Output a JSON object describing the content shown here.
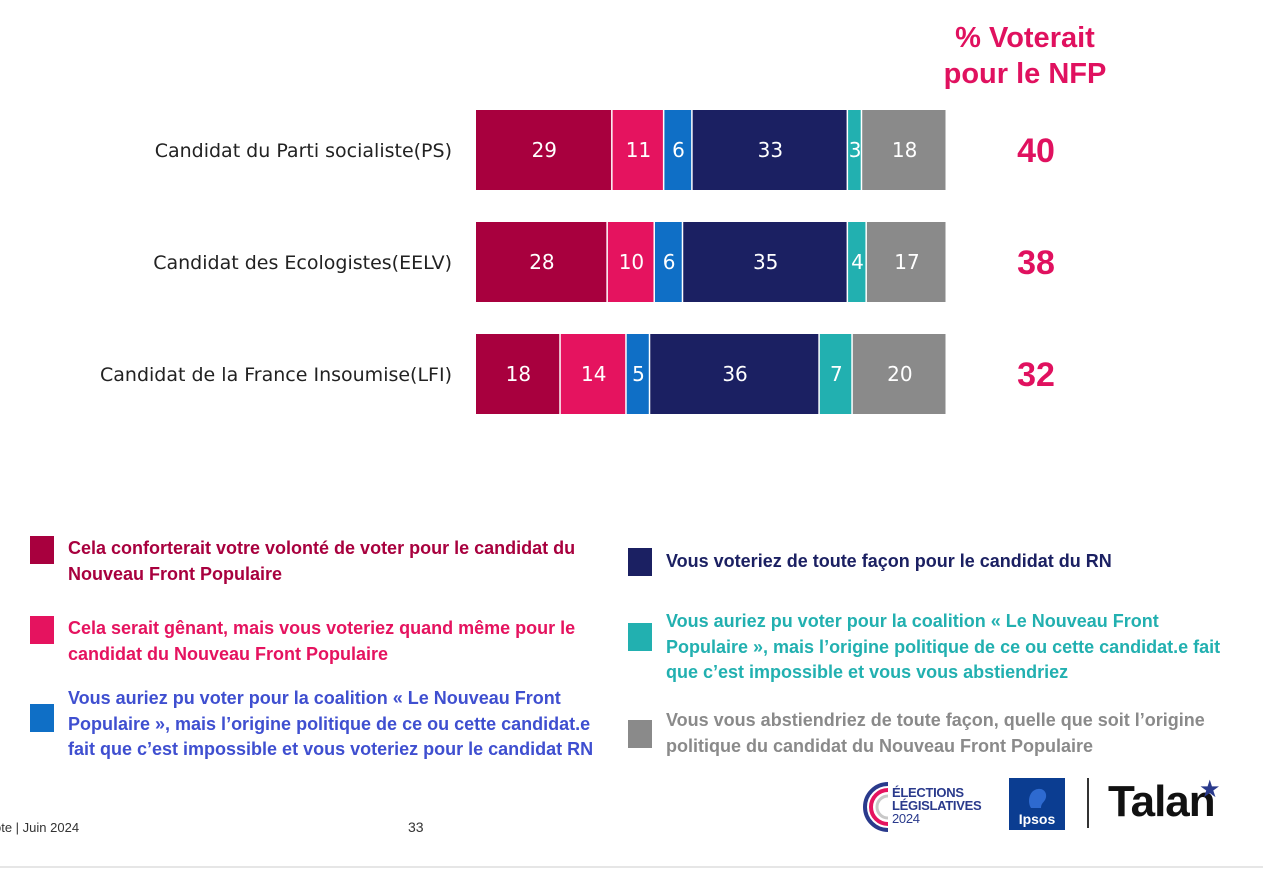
{
  "nfp_header": {
    "line1": "% Voterait",
    "line2": "pour le NFP"
  },
  "chart_data": {
    "type": "bar",
    "orientation": "horizontal",
    "stacked": true,
    "categories": [
      "Candidat du Parti socialiste(PS)",
      "Candidat des Ecologistes(EELV)",
      "Candidat de la France Insoumise(LFI)"
    ],
    "series": [
      {
        "name": "Cela conforterait votre volonté de voter pour le candidat du Nouveau Front Populaire",
        "color": "#a8003e",
        "values": [
          29,
          28,
          18
        ]
      },
      {
        "name": "Cela serait gênant, mais vous voteriez quand même pour le candidat du Nouveau Front Populaire",
        "color": "#e5135f",
        "values": [
          11,
          10,
          14
        ]
      },
      {
        "name": "Vous auriez pu voter pour la coalition « Le Nouveau Front Populaire », mais l’origine politique de ce ou cette candidat.e fait que c’est impossible et vous voteriez pour le candidat RN",
        "color": "#0f6fc6",
        "values": [
          6,
          6,
          5
        ]
      },
      {
        "name": "Vous voteriez de toute façon pour le candidat du RN",
        "color": "#1b2062",
        "values": [
          33,
          35,
          36
        ]
      },
      {
        "name": "Vous auriez pu voter pour la coalition « Le Nouveau Front Populaire », mais l’origine politique de ce ou cette candidat.e fait que c’est impossible et vous vous abstiendriez",
        "color": "#22b0b0",
        "values": [
          3,
          4,
          7
        ]
      },
      {
        "name": "Vous vous abstiendriez de toute façon, quelle que soit l’origine politique du candidat du Nouveau Front Populaire",
        "color": "#8a8a8a",
        "values": [
          18,
          17,
          20
        ]
      }
    ],
    "nfp_totals": [
      40,
      38,
      32
    ],
    "xlim": [
      0,
      100
    ],
    "legend_position": "bottom"
  },
  "legend": {
    "left": [
      {
        "text": "Cela conforterait votre volonté de voter pour le candidat du Nouveau Front Populaire",
        "color": "#a8003e"
      },
      {
        "text": "Cela serait gênant, mais vous voteriez quand même pour le candidat du Nouveau Front Populaire",
        "color": "#e5135f"
      },
      {
        "text": "Vous auriez pu voter pour la coalition « Le Nouveau Front Populaire », mais l’origine politique de ce ou cette candidat.e fait que c’est impossible et vous voteriez pour le candidat RN",
        "color": "#0f6fc6",
        "text_color": "#3f4fd0"
      }
    ],
    "right": [
      {
        "text": "Vous voteriez de toute façon pour le candidat du RN",
        "color": "#1b2062"
      },
      {
        "text": "Vous auriez pu voter pour la coalition « Le Nouveau Front Populaire », mais l’origine politique de ce ou cette candidat.e fait que c’est impossible et vous vous abstiendriez",
        "color": "#22b0b0"
      },
      {
        "text": "Vous vous abstiendriez de toute façon, quelle que soit l’origine politique du candidat du Nouveau Front Populaire",
        "color": "#8a8a8a"
      }
    ]
  },
  "footer": {
    "source": "ote | Juin 2024",
    "page": "33"
  },
  "logos": {
    "elections": {
      "line1": "ÉLECTIONS",
      "line2": "LÉGISLATIVES",
      "line3": "2024"
    },
    "ipsos": "Ipsos",
    "talan": "Talan"
  }
}
